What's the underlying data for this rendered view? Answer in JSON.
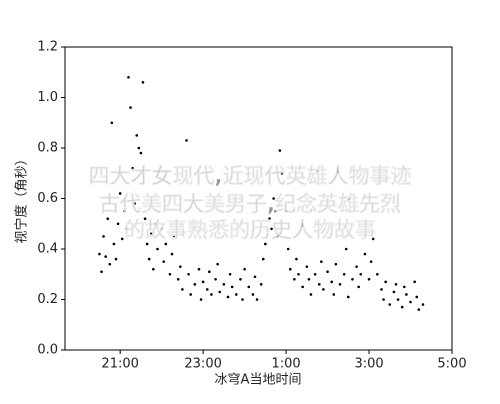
{
  "chart_data": {
    "type": "scatter",
    "xlabel": "冰穹A当地时间",
    "ylabel": "视宁度（角秒）",
    "annotations": [
      "四大才女现代,近现代英雄人物事迹",
      "古代美四大美男子,纪念英雄先烈",
      "的故事熟悉的历史人物故事"
    ],
    "color": "#000000",
    "xlim": [
      19.67,
      29
    ],
    "xticks": [
      {
        "value": 21,
        "label": "21:00"
      },
      {
        "value": 23,
        "label": "23:00"
      },
      {
        "value": 25,
        "label": "1:00"
      },
      {
        "value": 27,
        "label": "3:00"
      },
      {
        "value": 29,
        "label": "5:00"
      }
    ],
    "ylim": [
      0,
      1.2
    ],
    "yticks": [
      {
        "value": 0,
        "label": "0.0"
      },
      {
        "value": 0.2,
        "label": "0.2"
      },
      {
        "value": 0.4,
        "label": "0.4"
      },
      {
        "value": 0.6,
        "label": "0.6"
      },
      {
        "value": 0.8,
        "label": "0.8"
      },
      {
        "value": 1.0,
        "label": "1.0"
      },
      {
        "value": 1.2,
        "label": "1.2"
      }
    ],
    "x": [
      20.5,
      20.55,
      20.6,
      20.65,
      20.7,
      20.75,
      20.8,
      20.85,
      20.9,
      20.95,
      21.0,
      21.05,
      21.1,
      21.15,
      21.2,
      21.25,
      21.3,
      21.35,
      21.4,
      21.45,
      21.5,
      21.55,
      21.6,
      21.65,
      21.7,
      21.75,
      21.8,
      21.85,
      21.9,
      22.0,
      22.05,
      22.1,
      22.2,
      22.25,
      22.3,
      22.4,
      22.45,
      22.5,
      22.6,
      22.65,
      22.7,
      22.8,
      22.9,
      22.95,
      23.0,
      23.1,
      23.15,
      23.2,
      23.3,
      23.35,
      23.4,
      23.5,
      23.6,
      23.65,
      23.7,
      23.8,
      23.9,
      23.95,
      24.0,
      24.1,
      24.2,
      24.25,
      24.3,
      24.4,
      24.45,
      24.5,
      24.6,
      24.65,
      24.7,
      24.75,
      24.8,
      24.85,
      24.9,
      25.0,
      25.05,
      25.1,
      25.2,
      25.25,
      25.3,
      25.4,
      25.5,
      25.55,
      25.6,
      25.7,
      25.8,
      25.85,
      25.9,
      26.0,
      26.1,
      26.15,
      26.2,
      26.3,
      26.4,
      26.45,
      26.5,
      26.6,
      26.7,
      26.75,
      26.8,
      26.9,
      27.0,
      27.05,
      27.1,
      27.2,
      27.3,
      27.35,
      27.4,
      27.5,
      27.6,
      27.65,
      27.7,
      27.8,
      27.85,
      27.9,
      28.0,
      28.1,
      28.15,
      28.2,
      28.3
    ],
    "values": [
      0.38,
      0.31,
      0.45,
      0.37,
      0.52,
      0.34,
      0.9,
      0.42,
      0.36,
      0.5,
      0.62,
      0.44,
      0.55,
      0.48,
      1.08,
      0.96,
      0.72,
      0.58,
      0.85,
      0.8,
      0.78,
      1.06,
      0.52,
      0.42,
      0.36,
      0.46,
      0.32,
      0.5,
      0.4,
      0.48,
      0.35,
      0.42,
      0.3,
      0.38,
      0.45,
      0.28,
      0.33,
      0.24,
      0.83,
      0.3,
      0.22,
      0.26,
      0.32,
      0.2,
      0.27,
      0.24,
      0.31,
      0.22,
      0.28,
      0.34,
      0.23,
      0.26,
      0.21,
      0.3,
      0.25,
      0.22,
      0.28,
      0.2,
      0.32,
      0.25,
      0.22,
      0.29,
      0.2,
      0.26,
      0.36,
      0.42,
      0.52,
      0.48,
      0.6,
      0.55,
      0.45,
      0.79,
      0.7,
      0.55,
      0.4,
      0.32,
      0.28,
      0.36,
      0.3,
      0.25,
      0.33,
      0.28,
      0.22,
      0.3,
      0.26,
      0.35,
      0.24,
      0.31,
      0.27,
      0.22,
      0.34,
      0.26,
      0.3,
      0.4,
      0.21,
      0.28,
      0.33,
      0.25,
      0.3,
      0.38,
      0.28,
      0.35,
      0.44,
      0.3,
      0.24,
      0.2,
      0.27,
      0.18,
      0.23,
      0.26,
      0.2,
      0.17,
      0.25,
      0.22,
      0.19,
      0.27,
      0.21,
      0.16,
      0.18
    ]
  }
}
